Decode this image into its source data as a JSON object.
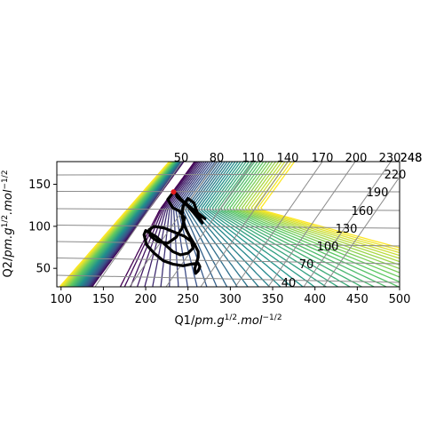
{
  "chart_data": {
    "type": "contour",
    "title": "",
    "xlabel": "Q1/pm.g^1/2.mol^-1/2",
    "ylabel": "Q2/pm.g^1/2.mol^-1/2",
    "xlabel_parts": {
      "base": "Q1/",
      "italic": "pm.g",
      "sup1": "1/2",
      "mid": ".mol",
      "sup2": "−1/2"
    },
    "ylabel_parts": {
      "base": "Q2/",
      "italic": "pm.g",
      "sup1": "1/2",
      "mid": ".mol",
      "sup2": "−1/2"
    },
    "xlim": [
      95,
      500
    ],
    "ylim": [
      28,
      177
    ],
    "x_ticks": [
      100,
      150,
      200,
      250,
      300,
      350,
      400,
      450,
      500
    ],
    "y_ticks": [
      50,
      100,
      150
    ],
    "skewed_grid": {
      "top_labels": [
        "50",
        "80",
        "110",
        "140",
        "170",
        "200",
        "230",
        "248"
      ],
      "right_labels": [
        "40",
        "70",
        "100",
        "130",
        "160",
        "190",
        "220",
        "248"
      ]
    },
    "colormap": [
      "#440154",
      "#3b528b",
      "#21918c",
      "#5ec962",
      "#fde725"
    ],
    "trajectory": {
      "color": "#000000",
      "start_marker_color": "#e31a1c",
      "points": [
        [
          233,
          141
        ],
        [
          226,
          132
        ],
        [
          232,
          122
        ],
        [
          240,
          118
        ],
        [
          246,
          110
        ],
        [
          243,
          98
        ],
        [
          236,
          87
        ],
        [
          226,
          80
        ],
        [
          214,
          82
        ],
        [
          206,
          88
        ],
        [
          204,
          96
        ],
        [
          210,
          100
        ],
        [
          222,
          98
        ],
        [
          234,
          93
        ],
        [
          246,
          88
        ],
        [
          254,
          82
        ],
        [
          256,
          74
        ],
        [
          250,
          68
        ],
        [
          241,
          66
        ],
        [
          232,
          70
        ],
        [
          222,
          79
        ],
        [
          212,
          88
        ],
        [
          200,
          95
        ],
        [
          198,
          90
        ],
        [
          201,
          78
        ],
        [
          210,
          68
        ],
        [
          221,
          59
        ],
        [
          232,
          55
        ],
        [
          244,
          53
        ],
        [
          254,
          55
        ],
        [
          262,
          56
        ],
        [
          264,
          52
        ],
        [
          262,
          47
        ],
        [
          259,
          44
        ],
        [
          258,
          50
        ],
        [
          260,
          57
        ],
        [
          262,
          63
        ],
        [
          262,
          70
        ],
        [
          258,
          78
        ],
        [
          252,
          88
        ],
        [
          246,
          100
        ],
        [
          243,
          112
        ],
        [
          244,
          124
        ],
        [
          250,
          133
        ],
        [
          257,
          128
        ],
        [
          260,
          119
        ],
        [
          264,
          110
        ],
        [
          267,
          104
        ],
        [
          262,
          110
        ],
        [
          255,
          118
        ],
        [
          248,
          126
        ],
        [
          241,
          133
        ],
        [
          236,
          139
        ],
        [
          237,
          135
        ],
        [
          245,
          128
        ],
        [
          253,
          122
        ],
        [
          259,
          117
        ],
        [
          266,
          112
        ],
        [
          270,
          109
        ],
        [
          264,
          114
        ],
        [
          256,
          120
        ],
        [
          249,
          126
        ],
        [
          242,
          131
        ]
      ]
    }
  }
}
